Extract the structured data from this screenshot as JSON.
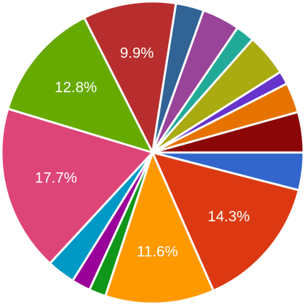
{
  "chart_data": {
    "type": "pie",
    "start_angle_deg": 90,
    "direction": "clockwise",
    "legend": "none",
    "slices": [
      {
        "value": 4.0,
        "label": "",
        "color": "#3366cc"
      },
      {
        "value": 14.3,
        "label": "14.3%",
        "color": "#dc3912"
      },
      {
        "value": 11.6,
        "label": "11.6%",
        "color": "#ff9900"
      },
      {
        "value": 1.8,
        "label": "",
        "color": "#109618"
      },
      {
        "value": 2.0,
        "label": "",
        "color": "#990099"
      },
      {
        "value": 3.0,
        "label": "",
        "color": "#0099c6"
      },
      {
        "value": 17.7,
        "label": "17.7%",
        "color": "#dd4477"
      },
      {
        "value": 12.8,
        "label": "12.8%",
        "color": "#66aa00"
      },
      {
        "value": 9.9,
        "label": "9.9%",
        "color": "#b82e2e"
      },
      {
        "value": 3.0,
        "label": "",
        "color": "#316395"
      },
      {
        "value": 4.0,
        "label": "",
        "color": "#994499"
      },
      {
        "value": 2.0,
        "label": "",
        "color": "#22aa99"
      },
      {
        "value": 4.5,
        "label": "",
        "color": "#aaaa11"
      },
      {
        "value": 1.4,
        "label": "",
        "color": "#6633cc"
      },
      {
        "value": 3.2,
        "label": "",
        "color": "#e67300"
      },
      {
        "value": 4.3,
        "label": "",
        "color": "#8b0707"
      }
    ]
  }
}
